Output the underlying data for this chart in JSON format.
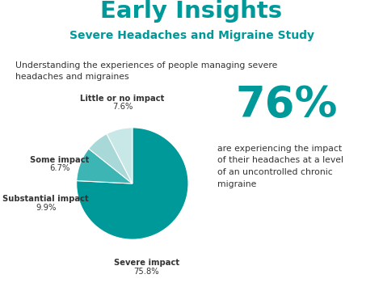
{
  "title": "Early Insights",
  "subtitle": "Severe Headaches and Migraine Study",
  "description": "Understanding the experiences of people managing severe\nheadaches and migraines",
  "big_percent": "76%",
  "big_percent_desc": "are experiencing the impact\nof their headaches at a level\nof an uncontrolled chronic\nmigraine",
  "slices": [
    75.8,
    9.9,
    6.7,
    7.6
  ],
  "slice_names": [
    "Severe impact",
    "Substantial impact",
    "Some impact",
    "Little or no impact"
  ],
  "slice_pcts": [
    "75.8%",
    "9.9%",
    "6.7%",
    "7.6%"
  ],
  "colors": [
    "#009999",
    "#3db5b5",
    "#a8d8d8",
    "#c8e8e8"
  ],
  "teal_color": "#009999",
  "text_color": "#333333",
  "bg_color": "#ffffff",
  "startangle": 90
}
